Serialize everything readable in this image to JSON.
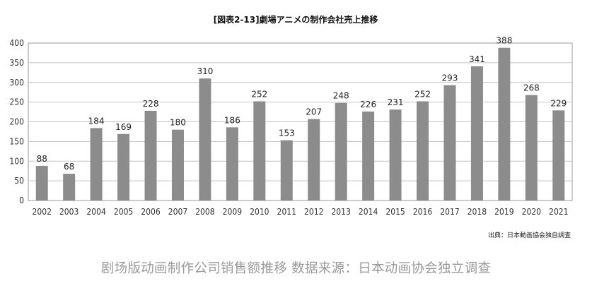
{
  "chart_data": {
    "type": "bar",
    "title": "[図表2-13]劇場アニメの制作会社売上推移",
    "categories": [
      "2002",
      "2003",
      "2004",
      "2005",
      "2006",
      "2007",
      "2008",
      "2009",
      "2010",
      "2011",
      "2012",
      "2013",
      "2014",
      "2015",
      "2016",
      "2017",
      "2018",
      "2019",
      "2020",
      "2021"
    ],
    "values": [
      88,
      68,
      184,
      169,
      228,
      180,
      310,
      186,
      252,
      153,
      207,
      248,
      226,
      231,
      252,
      293,
      341,
      388,
      268,
      229
    ],
    "yticks": [
      0,
      50,
      100,
      150,
      200,
      250,
      300,
      350,
      400
    ],
    "ylim": [
      0,
      400
    ],
    "grid": true,
    "bar_color": "#8c8c8c",
    "source": "出典：日本動画協会独自調査"
  },
  "caption": "剧场版动画制作公司销售额推移 数据来源：日本动画协会独立调查"
}
